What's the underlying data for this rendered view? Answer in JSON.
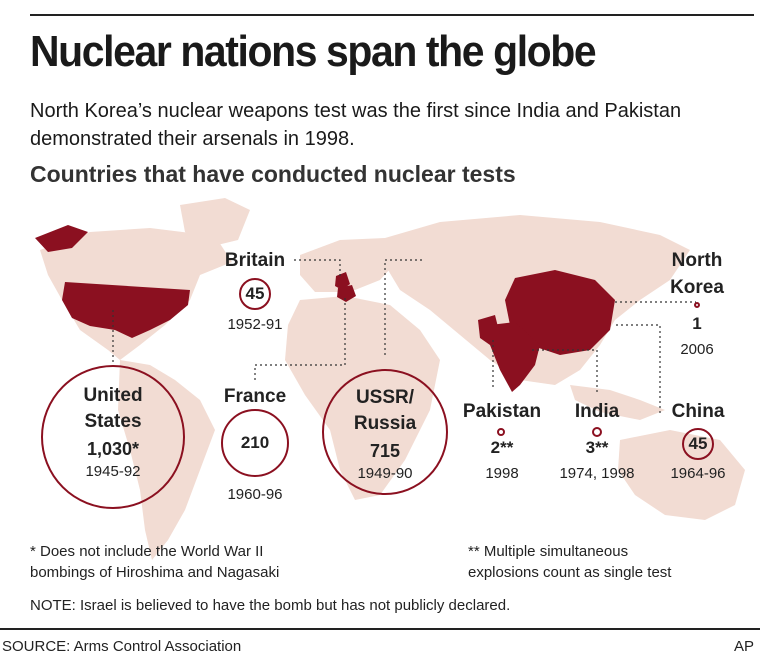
{
  "header": {
    "title": "Nuclear nations span the globe",
    "subtitle": "North Korea’s nuclear weapons test was the first since India and Pakistan demonstrated their arsenals in 1998.",
    "section_title": "Countries that have conducted nuclear tests"
  },
  "countries": [
    {
      "name_line1": "United",
      "name_line2": "States",
      "tests": "1,030*",
      "years": "1945-92"
    },
    {
      "name_line1": "Britain",
      "tests": "45",
      "years": "1952-91"
    },
    {
      "name_line1": "France",
      "tests": "210",
      "years": "1960-96"
    },
    {
      "name_line1": "USSR/",
      "name_line2": "Russia",
      "tests": "715",
      "years": "1949-90"
    },
    {
      "name_line1": "Pakistan",
      "tests": "2**",
      "years": "1998"
    },
    {
      "name_line1": "India",
      "tests": "3**",
      "years": "1974, 1998"
    },
    {
      "name_line1": "China",
      "tests": "45",
      "years": "1964-96"
    },
    {
      "name_line1": "North",
      "name_line2": "Korea",
      "tests": "1",
      "years": "2006"
    }
  ],
  "notes": {
    "asterisk_line1": "* Does not include the World War II",
    "asterisk_line2": "bombings of Hiroshima and Nagasaki",
    "double_asterisk_line1": "** Multiple simultaneous",
    "double_asterisk_line2": "explosions count as single test",
    "israel_note": "NOTE: Israel is believed to have the bomb but has not publicly declared."
  },
  "footer": {
    "source": "SOURCE: Arms Control Association",
    "credit": "AP"
  },
  "colors": {
    "land": "#f2dcd3",
    "nuclear_country": "#8b1020",
    "circle_stroke": "#8b1020",
    "leader_line": "#333333"
  }
}
